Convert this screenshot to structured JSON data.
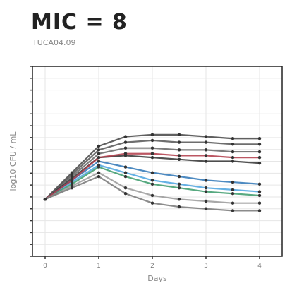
{
  "header": {
    "title": "MIC = 8",
    "subtitle": "TUCA04.09"
  },
  "chart_data": {
    "type": "line",
    "title": "MIC = 8",
    "subtitle": "TUCA04.09",
    "xlabel": "Days",
    "ylabel": "log10 CFU / mL",
    "x_ticks": [
      "0",
      "1",
      "2",
      "3",
      "4"
    ],
    "y_ticks": [],
    "xlim": [
      0,
      4
    ],
    "ylim": [
      0,
      1
    ],
    "grid": true,
    "series": [
      {
        "color": "#444444",
        "x": [
          0,
          0.5,
          1,
          1.5,
          2,
          2.5,
          3,
          3.5,
          4
        ],
        "y": [
          0.3,
          0.44,
          0.58,
          0.63,
          0.64,
          0.64,
          0.63,
          0.62,
          0.62
        ]
      },
      {
        "color": "#555555",
        "x": [
          0,
          0.5,
          1,
          1.5,
          2,
          2.5,
          3,
          3.5,
          4
        ],
        "y": [
          0.3,
          0.43,
          0.56,
          0.6,
          0.61,
          0.6,
          0.6,
          0.59,
          0.59
        ]
      },
      {
        "color": "#666666",
        "x": [
          0,
          0.5,
          1,
          1.5,
          2,
          2.5,
          3,
          3.5,
          4
        ],
        "y": [
          0.3,
          0.42,
          0.54,
          0.57,
          0.57,
          0.56,
          0.56,
          0.55,
          0.55
        ]
      },
      {
        "color": "#333333",
        "x": [
          0,
          0.5,
          1,
          1.5,
          2,
          2.5,
          3,
          3.5,
          4
        ],
        "y": [
          0.3,
          0.41,
          0.52,
          0.53,
          0.52,
          0.51,
          0.5,
          0.5,
          0.49
        ]
      },
      {
        "color": "#2e75b6",
        "x": [
          0,
          0.5,
          1,
          1.5,
          2,
          2.5,
          3,
          3.5,
          4
        ],
        "y": [
          0.3,
          0.4,
          0.5,
          0.47,
          0.44,
          0.42,
          0.4,
          0.39,
          0.38
        ]
      },
      {
        "color": "#4aa3df",
        "x": [
          0,
          0.5,
          1,
          1.5,
          2,
          2.5,
          3,
          3.5,
          4
        ],
        "y": [
          0.3,
          0.39,
          0.48,
          0.44,
          0.4,
          0.38,
          0.36,
          0.35,
          0.34
        ]
      },
      {
        "color": "#3a9a6a",
        "x": [
          0,
          0.5,
          1,
          1.5,
          2,
          2.5,
          3,
          3.5,
          4
        ],
        "y": [
          0.3,
          0.38,
          0.47,
          0.42,
          0.38,
          0.36,
          0.34,
          0.33,
          0.32
        ]
      },
      {
        "color": "#b03a48",
        "x": [
          0,
          0.5,
          1,
          1.5,
          2,
          2.5,
          3,
          3.5,
          4
        ],
        "y": [
          0.3,
          0.4,
          0.52,
          0.54,
          0.54,
          0.53,
          0.53,
          0.52,
          0.52
        ]
      },
      {
        "color": "#999999",
        "x": [
          0,
          0.5,
          1,
          1.5,
          2,
          2.5,
          3,
          3.5,
          4
        ],
        "y": [
          0.3,
          0.37,
          0.44,
          0.36,
          0.32,
          0.3,
          0.29,
          0.28,
          0.28
        ]
      },
      {
        "color": "#777777",
        "x": [
          0,
          0.5,
          1,
          1.5,
          2,
          2.5,
          3,
          3.5,
          4
        ],
        "y": [
          0.3,
          0.36,
          0.42,
          0.33,
          0.28,
          0.26,
          0.25,
          0.24,
          0.24
        ]
      }
    ]
  }
}
